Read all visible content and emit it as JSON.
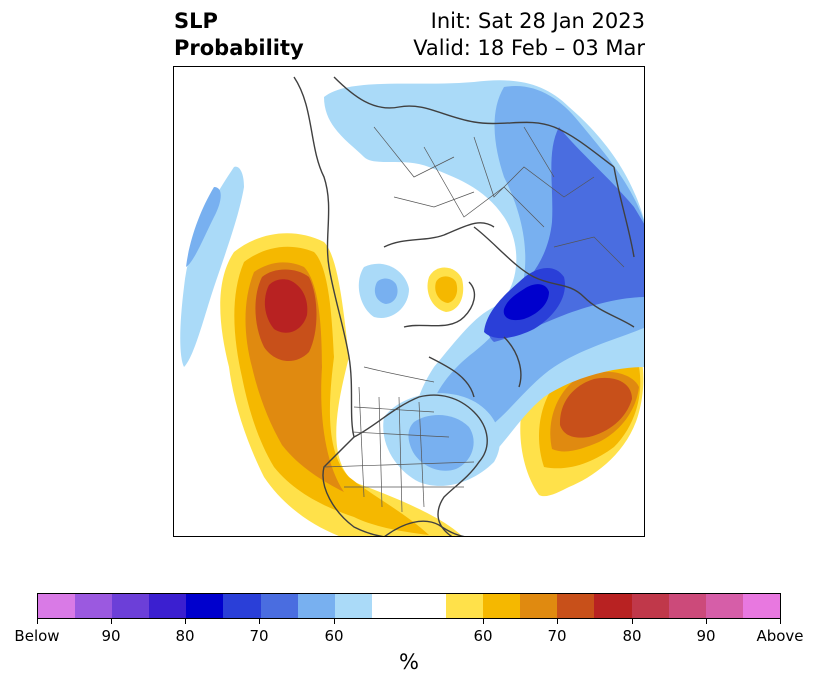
{
  "title": {
    "left_line1": "SLP",
    "left_line2": "Probability",
    "right_line1": "Init: Sat 28 Jan 2023",
    "right_line2": "Valid: 18 Feb – 03 Mar"
  },
  "colorbar": {
    "unit": "%",
    "colors": {
      "below_extreme": "#d97ae6",
      "b95": "#9b59e0",
      "b90": "#6c3fd8",
      "b85": "#3b1fd0",
      "b80": "#0000cd",
      "b75": "#2a3fd8",
      "b70": "#4a6de0",
      "b65": "#78b0f0",
      "b60": "#aadaf8",
      "neutral": "#ffffff",
      "a60": "#ffe14a",
      "a65": "#f5b800",
      "a70": "#e08a10",
      "a75": "#c8501a",
      "a80": "#b82222",
      "a85": "#c0384a",
      "a90": "#cc4a7a",
      "a95": "#d65ea8",
      "above_extreme": "#e878e0"
    },
    "ticks": [
      "Below",
      "90",
      "80",
      "70",
      "60",
      "60",
      "70",
      "80",
      "90",
      "Above"
    ]
  },
  "map": {
    "coastline_color": "#404040",
    "border_color": "#555555"
  }
}
